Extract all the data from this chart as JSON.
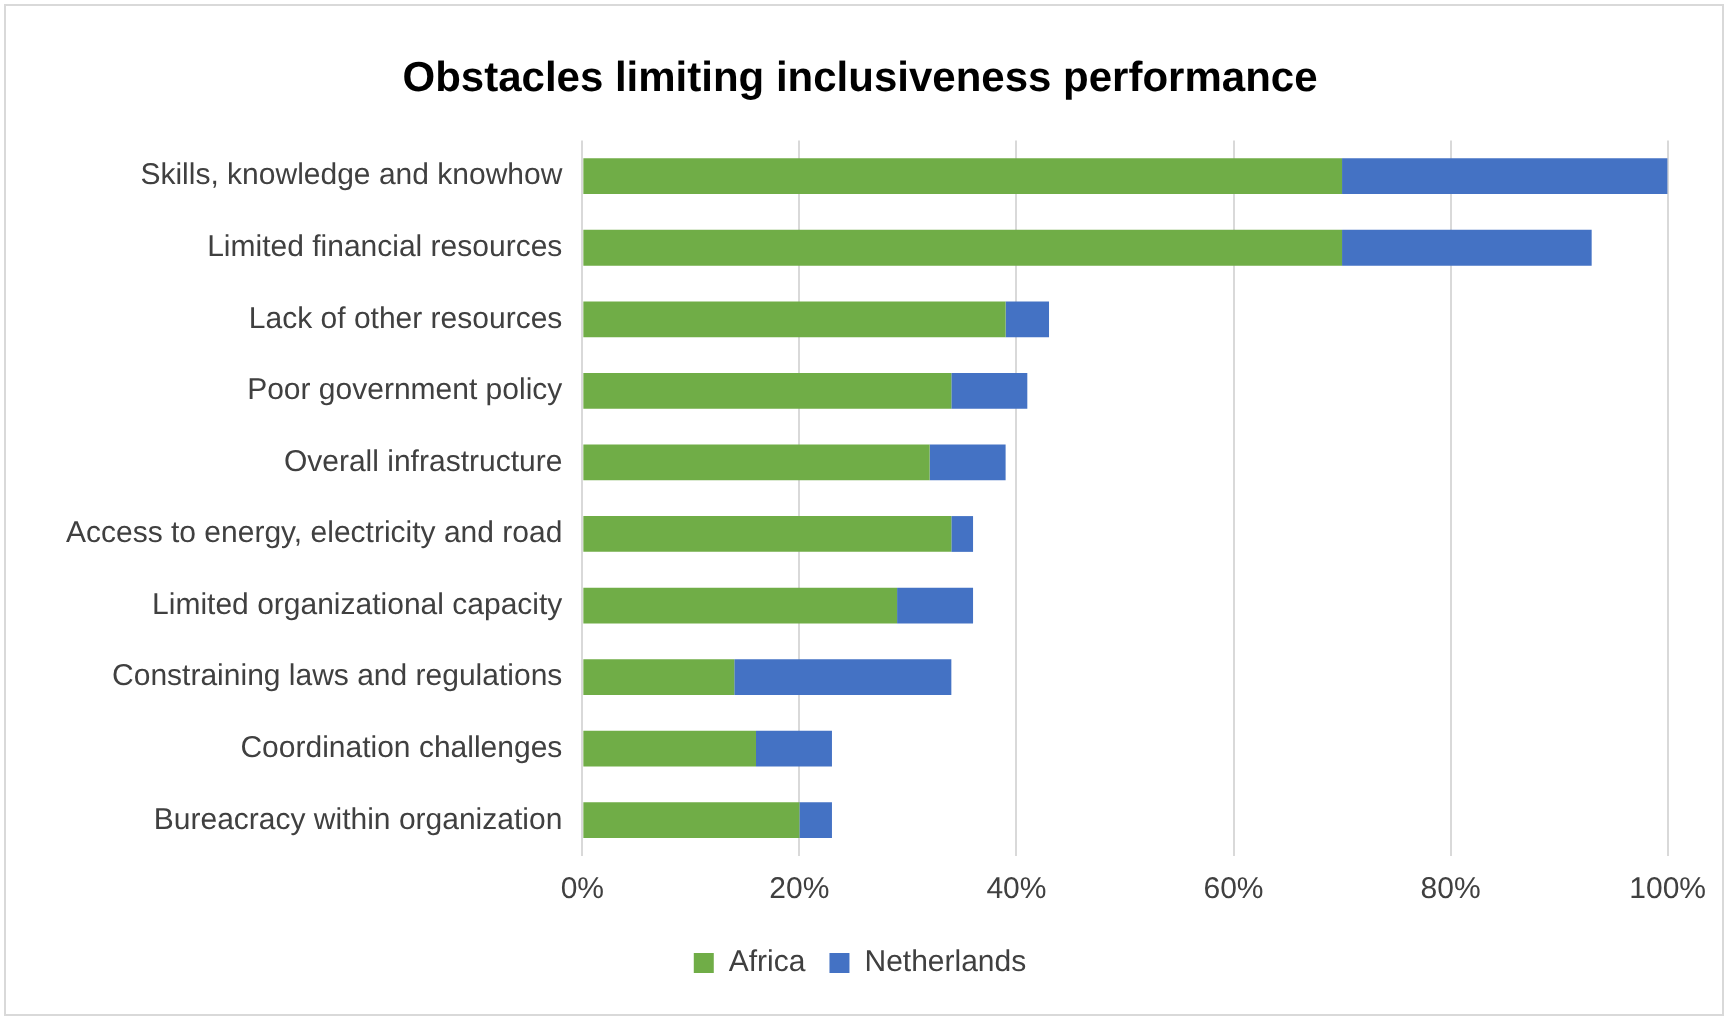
{
  "chart_data": {
    "type": "bar",
    "orientation": "horizontal",
    "stacked": true,
    "title": "Obstacles limiting inclusiveness performance",
    "categories": [
      "Skills, knowledge and knowhow",
      "Limited financial resources",
      "Lack of other resources",
      "Poor government policy",
      "Overall infrastructure",
      "Access to energy, electricity and road",
      "Limited organizational capacity",
      "Constraining laws and regulations",
      "Coordination challenges",
      "Bureacracy within organization"
    ],
    "series": [
      {
        "name": "Africa",
        "color": "#70ad47",
        "values": [
          70,
          70,
          39,
          34,
          32,
          34,
          29,
          14,
          16,
          20
        ]
      },
      {
        "name": "Netherlands",
        "color": "#4472c4",
        "values": [
          30,
          23,
          4,
          7,
          7,
          2,
          7,
          20,
          7,
          3
        ]
      }
    ],
    "xlim": [
      0,
      100
    ],
    "xticks": [
      {
        "value": 0,
        "label": "0%"
      },
      {
        "value": 20,
        "label": "20%"
      },
      {
        "value": 40,
        "label": "40%"
      },
      {
        "value": 60,
        "label": "60%"
      },
      {
        "value": 80,
        "label": "80%"
      },
      {
        "value": 100,
        "label": "100%"
      }
    ],
    "grid": "x",
    "legend": "bottom"
  }
}
